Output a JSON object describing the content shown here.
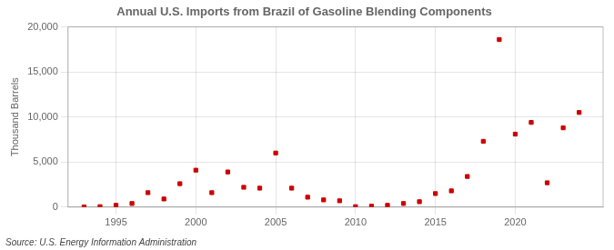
{
  "chart_data": {
    "type": "scatter",
    "title": "Annual U.S. Imports from Brazil of Gasoline Blending Components",
    "ylabel": "Thousand Barrels",
    "source": "Source: U.S. Energy Information Administration",
    "x": [
      1993,
      1994,
      1995,
      1996,
      1997,
      1998,
      1999,
      2000,
      2001,
      2002,
      2003,
      2004,
      2005,
      2006,
      2007,
      2008,
      2009,
      2010,
      2011,
      2012,
      2013,
      2014,
      2015,
      2016,
      2017,
      2018,
      2019,
      2020,
      2021,
      2022,
      2023,
      2024
    ],
    "values": [
      10,
      50,
      200,
      400,
      1600,
      900,
      2600,
      4100,
      1600,
      3900,
      2200,
      2100,
      6000,
      2100,
      1100,
      800,
      700,
      50,
      100,
      200,
      400,
      600,
      1500,
      1800,
      3400,
      7300,
      18600,
      8100,
      9400,
      2700,
      8800,
      10500
    ],
    "color": "#cc0000",
    "marker": "square",
    "xlim": [
      1992,
      2025.5
    ],
    "xticks": [
      1995,
      2000,
      2005,
      2010,
      2015,
      2020
    ],
    "ylim": [
      0,
      20000
    ],
    "yticks": [
      0,
      {
        "value": 5000,
        "label": "5,000"
      },
      {
        "value": 10000,
        "label": "10,000"
      },
      {
        "value": 15000,
        "label": "15,000"
      },
      {
        "value": 20000,
        "label": "20,000"
      }
    ],
    "grid": true
  }
}
